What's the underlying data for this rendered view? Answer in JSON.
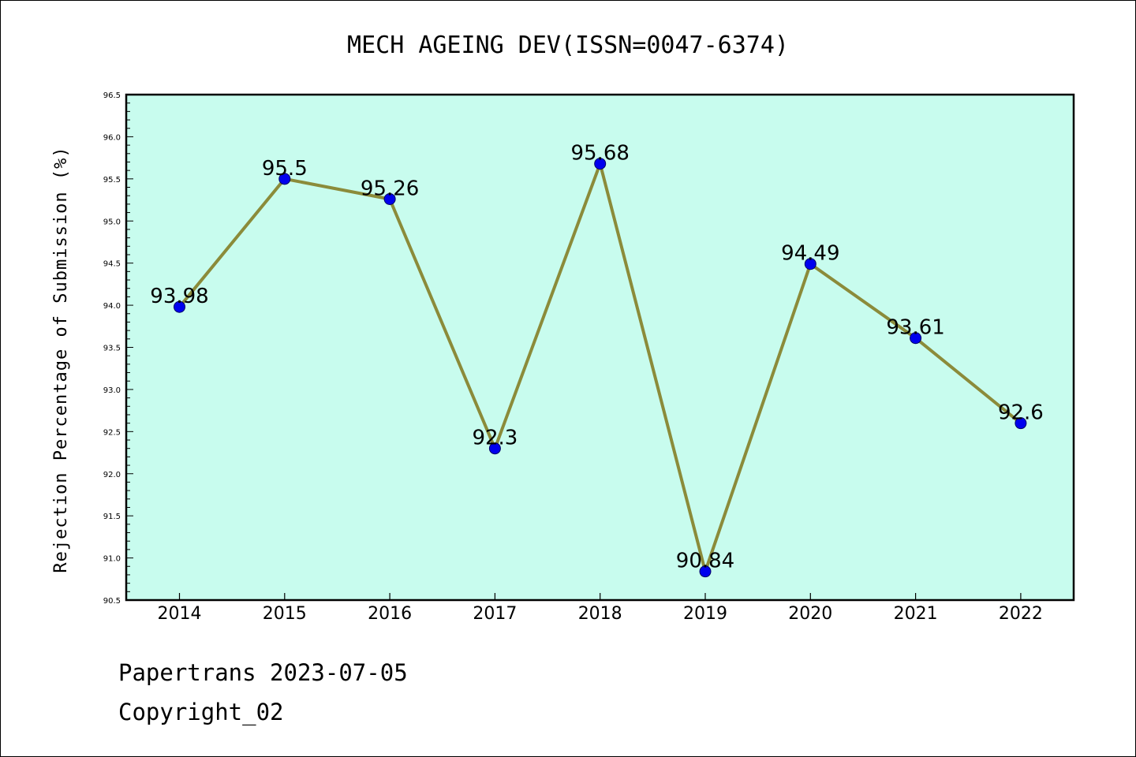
{
  "chart_data": {
    "type": "line",
    "title": "MECH AGEING DEV(ISSN=0047-6374)",
    "xlabel": "",
    "ylabel": "Rejection Percentage of Submission (%)",
    "categories": [
      "2014",
      "2015",
      "2016",
      "2017",
      "2018",
      "2019",
      "2020",
      "2021",
      "2022"
    ],
    "values": [
      93.98,
      95.5,
      95.26,
      92.3,
      95.68,
      90.84,
      94.49,
      93.61,
      92.6
    ],
    "data_labels": [
      "93.98",
      "95.5",
      "95.26",
      "92.3",
      "95.68",
      "90.84",
      "94.49",
      "93.61",
      "92.6"
    ],
    "ylim": [
      90.5,
      96.5
    ],
    "yticks": [
      "90.5",
      "91.0",
      "91.5",
      "92.0",
      "92.5",
      "93.0",
      "93.5",
      "94.0",
      "94.5",
      "95.0",
      "95.5",
      "96.0",
      "96.5"
    ],
    "grid": false,
    "legend": "none",
    "colors": {
      "plot_background": "#c8fcee",
      "line": "#8b8b3a",
      "marker": "#0000ee"
    }
  },
  "footer": {
    "line1": "Papertrans 2023-07-05",
    "line2": "Copyright_02"
  }
}
